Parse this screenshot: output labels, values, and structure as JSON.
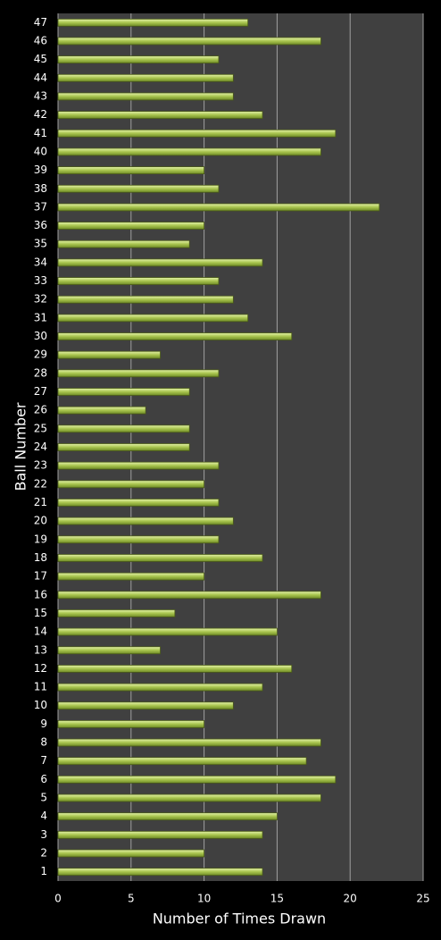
{
  "chart_data": {
    "type": "bar",
    "orientation": "horizontal",
    "x_label": "Number of Times Drawn",
    "y_label": "Ball Number",
    "categories": [
      "1",
      "2",
      "3",
      "4",
      "5",
      "6",
      "7",
      "8",
      "9",
      "10",
      "11",
      "12",
      "13",
      "14",
      "15",
      "16",
      "17",
      "18",
      "19",
      "20",
      "21",
      "22",
      "23",
      "24",
      "25",
      "26",
      "27",
      "28",
      "29",
      "30",
      "31",
      "32",
      "33",
      "34",
      "35",
      "36",
      "37",
      "38",
      "39",
      "40",
      "41",
      "42",
      "43",
      "44",
      "45",
      "46",
      "47"
    ],
    "values": [
      14,
      10,
      14,
      15,
      18,
      19,
      17,
      18,
      10,
      12,
      14,
      16,
      7,
      15,
      8,
      18,
      10,
      14,
      11,
      12,
      11,
      10,
      11,
      9,
      9,
      6,
      9,
      11,
      7,
      16,
      13,
      12,
      11,
      14,
      9,
      10,
      22,
      11,
      10,
      18,
      19,
      14,
      12,
      12,
      11,
      18,
      13
    ],
    "color": "#b5d15e",
    "xlim": [
      0,
      25
    ],
    "xticks": [
      0,
      5,
      10,
      15,
      20,
      25
    ],
    "grid": true
  }
}
